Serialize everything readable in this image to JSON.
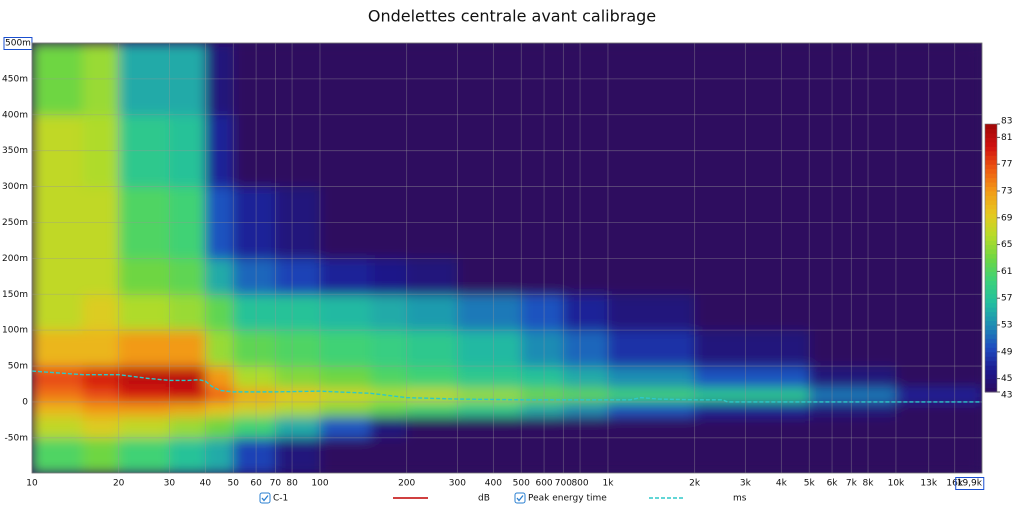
{
  "chart_data": {
    "type": "heatmap",
    "title": "Ondelettes centrale avant calibrage",
    "xscale": "log",
    "xlim": [
      10,
      19900
    ],
    "ylim": [
      -0.099,
      0.5
    ],
    "grid": true,
    "background": "#2d0a5e",
    "xticks": [
      10,
      20,
      30,
      40,
      50,
      60,
      70,
      80,
      100,
      200,
      300,
      400,
      500,
      600,
      700,
      800,
      {
        "value": 1000,
        "label": "1k"
      },
      {
        "value": 2000,
        "label": "2k"
      },
      {
        "value": 3000,
        "label": "3k"
      },
      {
        "value": 4000,
        "label": "4k"
      },
      {
        "value": 5000,
        "label": "5k"
      },
      {
        "value": 6000,
        "label": "6k"
      },
      {
        "value": 7000,
        "label": "7k"
      },
      {
        "value": 8000,
        "label": "8k"
      },
      {
        "value": 10000,
        "label": "10k"
      },
      {
        "value": 13000,
        "label": "13k"
      },
      {
        "value": 16000,
        "label": "16k"
      },
      {
        "value": 19900,
        "label": "19,9k"
      }
    ],
    "yticks": [
      {
        "value": -0.05,
        "label": "-50m"
      },
      0,
      {
        "value": 0.05,
        "label": "50m"
      },
      {
        "value": 0.1,
        "label": "100m"
      },
      {
        "value": 0.15,
        "label": "150m"
      },
      {
        "value": 0.2,
        "label": "200m"
      },
      {
        "value": 0.25,
        "label": "250m"
      },
      {
        "value": 0.3,
        "label": "300m"
      },
      {
        "value": 0.35,
        "label": "350m"
      },
      {
        "value": 0.4,
        "label": "400m"
      },
      {
        "value": 0.45,
        "label": "450m"
      },
      {
        "value": 0.5,
        "label": "500m"
      }
    ],
    "zlim": [
      43,
      83
    ],
    "zticks": [
      43,
      45,
      49,
      53,
      57,
      61,
      65,
      69,
      73,
      77,
      81,
      83
    ],
    "colormap": [
      "#2d0a5e",
      "#1c1a8e",
      "#1f4cc0",
      "#1e8cb4",
      "#22bea0",
      "#3cd27a",
      "#6ed642",
      "#b6dc2a",
      "#e6c820",
      "#f29a16",
      "#ee5a12",
      "#d01010",
      "#a00808"
    ],
    "heatmap": {
      "x_bins": [
        10,
        15,
        20,
        30,
        40,
        50,
        70,
        100,
        150,
        200,
        300,
        500,
        700,
        1000,
        2000,
        5000,
        10000,
        19900
      ],
      "y_bins": [
        -0.099,
        -0.05,
        -0.02,
        0,
        0.02,
        0.05,
        0.1,
        0.15,
        0.2,
        0.3,
        0.4,
        0.5
      ],
      "values": [
        [
          61,
          63,
          60,
          57,
          55,
          49,
          45,
          43,
          43,
          43,
          43,
          43,
          43,
          43,
          43,
          43,
          43
        ],
        [
          67,
          69,
          67,
          65,
          63,
          60,
          55,
          50,
          45,
          43,
          43,
          43,
          43,
          43,
          43,
          43,
          43
        ],
        [
          71,
          73,
          73,
          72,
          70,
          68,
          66,
          64,
          62,
          60,
          58,
          55,
          53,
          50,
          47,
          45,
          43
        ],
        [
          75,
          77,
          79,
          80,
          76,
          72,
          70,
          68,
          66,
          67,
          65,
          63,
          62,
          60,
          58,
          52,
          47
        ],
        [
          77,
          79,
          81,
          81,
          73,
          66,
          64,
          63,
          61,
          60,
          58,
          57,
          55,
          53,
          50,
          45,
          43
        ],
        [
          71,
          71,
          73,
          73,
          65,
          62,
          61,
          60,
          59,
          58,
          56,
          53,
          51,
          48,
          45,
          43,
          43
        ],
        [
          67,
          69,
          66,
          65,
          62,
          57,
          57,
          56,
          55,
          54,
          52,
          50,
          47,
          45,
          43,
          43,
          43
        ],
        [
          67,
          67,
          63,
          62,
          55,
          51,
          49,
          47,
          46,
          45,
          43,
          43,
          43,
          43,
          43,
          43,
          43
        ],
        [
          67,
          67,
          61,
          60,
          50,
          47,
          45,
          43,
          43,
          43,
          43,
          43,
          43,
          43,
          43,
          43,
          43
        ],
        [
          67,
          66,
          58,
          57,
          47,
          43,
          43,
          43,
          43,
          43,
          43,
          43,
          43,
          43,
          43,
          43,
          43
        ],
        [
          63,
          65,
          55,
          55,
          45,
          43,
          43,
          43,
          43,
          43,
          43,
          43,
          43,
          43,
          43,
          43,
          43
        ]
      ]
    },
    "series": [
      {
        "name": "C-1",
        "color": "#c00000",
        "unit": "dB",
        "x": [],
        "values": []
      },
      {
        "name": "Peak energy time",
        "color": "#2ec8c8",
        "unit": "ms",
        "dashed": true,
        "x": [
          10,
          15,
          20,
          25,
          30,
          35,
          38,
          40,
          42,
          45,
          50,
          70,
          100,
          150,
          200,
          300,
          500,
          1000,
          1200,
          1300,
          1500,
          2000,
          2500,
          2600,
          3000,
          5000,
          10000,
          19900
        ],
        "values": [
          0.043,
          0.038,
          0.038,
          0.033,
          0.03,
          0.03,
          0.031,
          0.029,
          0.022,
          0.016,
          0.014,
          0.014,
          0.015,
          0.012,
          0.006,
          0.004,
          0.003,
          0.003,
          0.003,
          0.006,
          0.004,
          0.003,
          0.003,
          0,
          0,
          0,
          0,
          0
        ]
      }
    ]
  }
}
